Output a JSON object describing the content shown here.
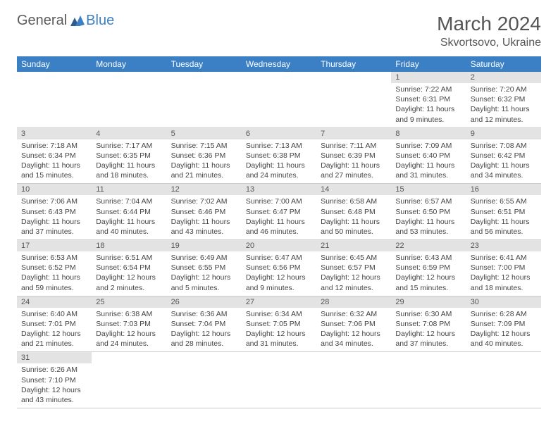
{
  "logo": {
    "part1": "General",
    "part2": "Blue"
  },
  "title": "March 2024",
  "location": "Skvortsovo, Ukraine",
  "colors": {
    "header_bg": "#3b7fc4",
    "header_text": "#ffffff",
    "daynum_bg": "#e3e3e3",
    "text": "#444444",
    "border": "#cccccc"
  },
  "weekdays": [
    "Sunday",
    "Monday",
    "Tuesday",
    "Wednesday",
    "Thursday",
    "Friday",
    "Saturday"
  ],
  "calendar": {
    "first_weekday_index": 5,
    "days": [
      {
        "n": 1,
        "sunrise": "7:22 AM",
        "sunset": "6:31 PM",
        "daylight": "11 hours and 9 minutes."
      },
      {
        "n": 2,
        "sunrise": "7:20 AM",
        "sunset": "6:32 PM",
        "daylight": "11 hours and 12 minutes."
      },
      {
        "n": 3,
        "sunrise": "7:18 AM",
        "sunset": "6:34 PM",
        "daylight": "11 hours and 15 minutes."
      },
      {
        "n": 4,
        "sunrise": "7:17 AM",
        "sunset": "6:35 PM",
        "daylight": "11 hours and 18 minutes."
      },
      {
        "n": 5,
        "sunrise": "7:15 AM",
        "sunset": "6:36 PM",
        "daylight": "11 hours and 21 minutes."
      },
      {
        "n": 6,
        "sunrise": "7:13 AM",
        "sunset": "6:38 PM",
        "daylight": "11 hours and 24 minutes."
      },
      {
        "n": 7,
        "sunrise": "7:11 AM",
        "sunset": "6:39 PM",
        "daylight": "11 hours and 27 minutes."
      },
      {
        "n": 8,
        "sunrise": "7:09 AM",
        "sunset": "6:40 PM",
        "daylight": "11 hours and 31 minutes."
      },
      {
        "n": 9,
        "sunrise": "7:08 AM",
        "sunset": "6:42 PM",
        "daylight": "11 hours and 34 minutes."
      },
      {
        "n": 10,
        "sunrise": "7:06 AM",
        "sunset": "6:43 PM",
        "daylight": "11 hours and 37 minutes."
      },
      {
        "n": 11,
        "sunrise": "7:04 AM",
        "sunset": "6:44 PM",
        "daylight": "11 hours and 40 minutes."
      },
      {
        "n": 12,
        "sunrise": "7:02 AM",
        "sunset": "6:46 PM",
        "daylight": "11 hours and 43 minutes."
      },
      {
        "n": 13,
        "sunrise": "7:00 AM",
        "sunset": "6:47 PM",
        "daylight": "11 hours and 46 minutes."
      },
      {
        "n": 14,
        "sunrise": "6:58 AM",
        "sunset": "6:48 PM",
        "daylight": "11 hours and 50 minutes."
      },
      {
        "n": 15,
        "sunrise": "6:57 AM",
        "sunset": "6:50 PM",
        "daylight": "11 hours and 53 minutes."
      },
      {
        "n": 16,
        "sunrise": "6:55 AM",
        "sunset": "6:51 PM",
        "daylight": "11 hours and 56 minutes."
      },
      {
        "n": 17,
        "sunrise": "6:53 AM",
        "sunset": "6:52 PM",
        "daylight": "11 hours and 59 minutes."
      },
      {
        "n": 18,
        "sunrise": "6:51 AM",
        "sunset": "6:54 PM",
        "daylight": "12 hours and 2 minutes."
      },
      {
        "n": 19,
        "sunrise": "6:49 AM",
        "sunset": "6:55 PM",
        "daylight": "12 hours and 5 minutes."
      },
      {
        "n": 20,
        "sunrise": "6:47 AM",
        "sunset": "6:56 PM",
        "daylight": "12 hours and 9 minutes."
      },
      {
        "n": 21,
        "sunrise": "6:45 AM",
        "sunset": "6:57 PM",
        "daylight": "12 hours and 12 minutes."
      },
      {
        "n": 22,
        "sunrise": "6:43 AM",
        "sunset": "6:59 PM",
        "daylight": "12 hours and 15 minutes."
      },
      {
        "n": 23,
        "sunrise": "6:41 AM",
        "sunset": "7:00 PM",
        "daylight": "12 hours and 18 minutes."
      },
      {
        "n": 24,
        "sunrise": "6:40 AM",
        "sunset": "7:01 PM",
        "daylight": "12 hours and 21 minutes."
      },
      {
        "n": 25,
        "sunrise": "6:38 AM",
        "sunset": "7:03 PM",
        "daylight": "12 hours and 24 minutes."
      },
      {
        "n": 26,
        "sunrise": "6:36 AM",
        "sunset": "7:04 PM",
        "daylight": "12 hours and 28 minutes."
      },
      {
        "n": 27,
        "sunrise": "6:34 AM",
        "sunset": "7:05 PM",
        "daylight": "12 hours and 31 minutes."
      },
      {
        "n": 28,
        "sunrise": "6:32 AM",
        "sunset": "7:06 PM",
        "daylight": "12 hours and 34 minutes."
      },
      {
        "n": 29,
        "sunrise": "6:30 AM",
        "sunset": "7:08 PM",
        "daylight": "12 hours and 37 minutes."
      },
      {
        "n": 30,
        "sunrise": "6:28 AM",
        "sunset": "7:09 PM",
        "daylight": "12 hours and 40 minutes."
      },
      {
        "n": 31,
        "sunrise": "6:26 AM",
        "sunset": "7:10 PM",
        "daylight": "12 hours and 43 minutes."
      }
    ]
  },
  "labels": {
    "sunrise": "Sunrise:",
    "sunset": "Sunset:",
    "daylight": "Daylight:"
  }
}
